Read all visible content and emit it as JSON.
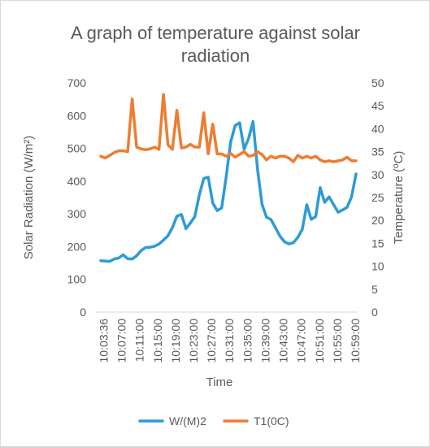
{
  "chart_data": {
    "type": "line",
    "title_line1": "A graph of temperature against solar",
    "title_line2": "radiation",
    "xlabel": "Time",
    "ylabel_left": "Solar Radiation (W/m²)",
    "ylabel_right": "Temperature (ºC)",
    "ylim_left": [
      0,
      700
    ],
    "ylim_right": [
      0,
      50
    ],
    "yticks_left": [
      "0",
      "100",
      "200",
      "300",
      "400",
      "500",
      "600",
      "700"
    ],
    "yticks_right": [
      "0",
      "5",
      "10",
      "15",
      "20",
      "25",
      "30",
      "35",
      "40",
      "45",
      "50"
    ],
    "x_tick_labels": [
      "10:03:36",
      "10:07:00",
      "10:11:00",
      "10:15:00",
      "10:19:00",
      "10:23:00",
      "10:27:00",
      "10:31:00",
      "10:35:00",
      "10:39:00",
      "10:43:00",
      "10:47:00",
      "10:51:00",
      "10:55:00",
      "10:59:00"
    ],
    "grid": false,
    "legend_position": "bottom",
    "series": [
      {
        "name": "W/(M)2",
        "axis": "left",
        "color": "#2e9bd6",
        "values": [
          157,
          156,
          155,
          162,
          165,
          175,
          163,
          162,
          172,
          188,
          197,
          198,
          201,
          208,
          220,
          233,
          258,
          293,
          298,
          255,
          272,
          292,
          358,
          408,
          412,
          333,
          310,
          318,
          412,
          520,
          570,
          578,
          498,
          530,
          582,
          437,
          330,
          290,
          283,
          258,
          232,
          215,
          208,
          212,
          228,
          253,
          328,
          283,
          292,
          380,
          335,
          352,
          328,
          305,
          312,
          320,
          352,
          422
        ]
      },
      {
        "name": "T1(0C)",
        "axis": "right",
        "color": "#ed7d31",
        "values": [
          34,
          33.6,
          34.2,
          34.8,
          35.2,
          35.2,
          35,
          46.5,
          36,
          35.6,
          35.4,
          35.6,
          36,
          35.5,
          47.5,
          36.5,
          35.5,
          44,
          35.8,
          36,
          36.6,
          36,
          36,
          43.5,
          34.5,
          41,
          34.5,
          34.5,
          34,
          34.6,
          33.8,
          34.4,
          35,
          34,
          34.2,
          35,
          34.4,
          33.2,
          34,
          33.6,
          34,
          34,
          33.6,
          32.8,
          34.2,
          33.6,
          34,
          33.6,
          34,
          33.2,
          32.8,
          33,
          32.8,
          33,
          33.2,
          33.8,
          33,
          33
        ]
      }
    ]
  }
}
